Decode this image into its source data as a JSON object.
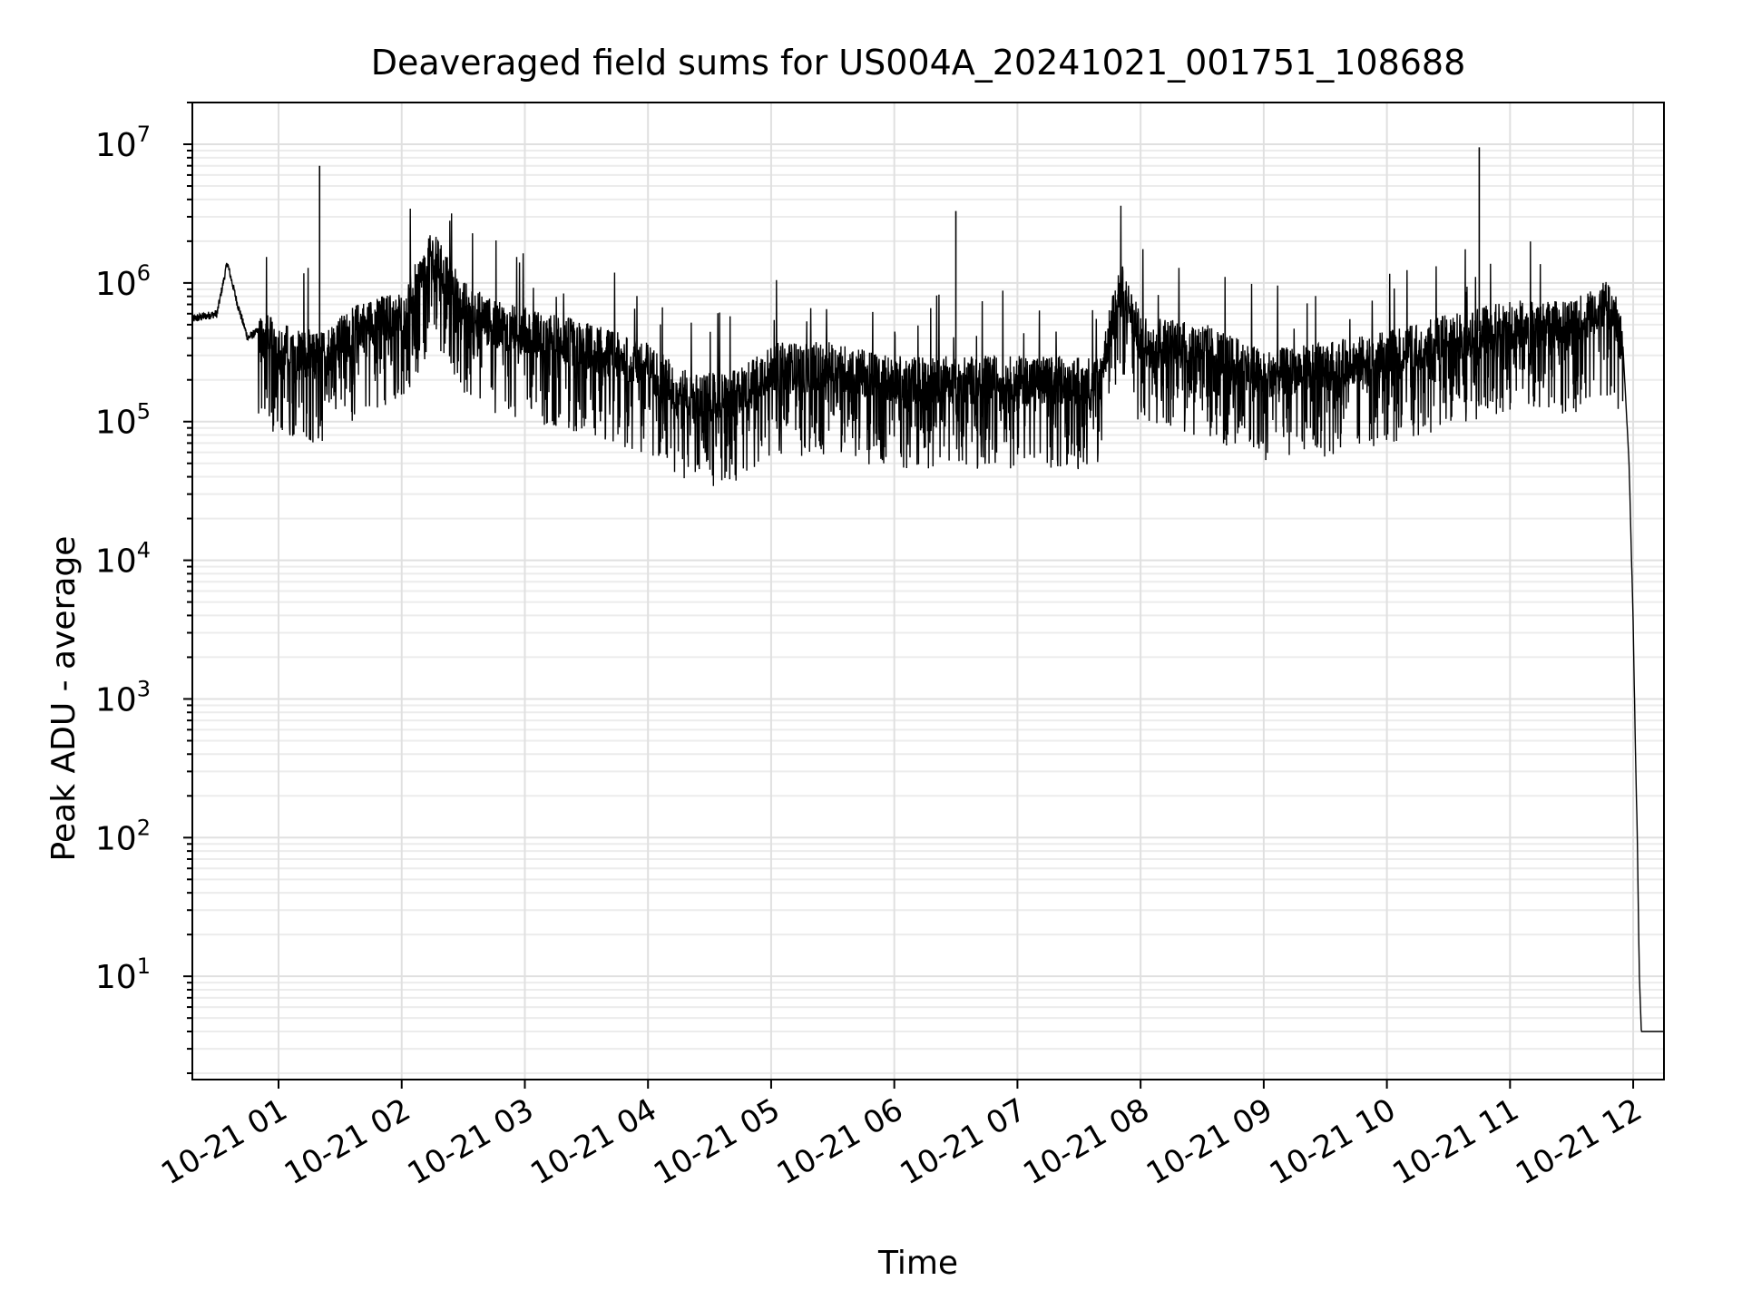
{
  "chart_data": {
    "type": "line",
    "title": "Deaveraged field sums for US004A_20241021_001751_108688",
    "xlabel": "Time",
    "ylabel": "Peak ADU - average",
    "yscale": "log",
    "ylim": [
      1.8,
      20000000
    ],
    "xlim": [
      "2024-10-21T00:18:00",
      "2024-10-21T12:15:00"
    ],
    "grid": true,
    "line_color": "#000000",
    "x_ticks": [
      "2024-10-21T01:00:00",
      "2024-10-21T02:00:00",
      "2024-10-21T03:00:00",
      "2024-10-21T04:00:00",
      "2024-10-21T05:00:00",
      "2024-10-21T06:00:00",
      "2024-10-21T07:00:00",
      "2024-10-21T08:00:00",
      "2024-10-21T09:00:00",
      "2024-10-21T10:00:00",
      "2024-10-21T11:00:00",
      "2024-10-21T12:00:00"
    ],
    "x_tick_labels": [
      "10-21 01",
      "10-21 02",
      "10-21 03",
      "10-21 04",
      "10-21 05",
      "10-21 06",
      "10-21 07",
      "10-21 08",
      "10-21 09",
      "10-21 10",
      "10-21 11",
      "10-21 12"
    ],
    "y_ticks": [
      10,
      100,
      1000,
      10000,
      100000,
      1000000,
      10000000
    ],
    "y_tick_base": "10",
    "y_tick_exponents": [
      "1",
      "2",
      "3",
      "4",
      "5",
      "6",
      "7"
    ],
    "series": [
      {
        "x": [
          "2024-10-21T00:18:00",
          "2024-10-21T00:30:00",
          "2024-10-21T00:35:00",
          "2024-10-21T00:40:00",
          "2024-10-21T00:45:00",
          "2024-10-21T00:50:00",
          "2024-10-21T01:00:00",
          "2024-10-21T01:20:00",
          "2024-10-21T01:40:00",
          "2024-10-21T02:00:00",
          "2024-10-21T02:15:00",
          "2024-10-21T02:30:00",
          "2024-10-21T02:45:00",
          "2024-10-21T03:00:00",
          "2024-10-21T03:30:00",
          "2024-10-21T04:00:00",
          "2024-10-21T04:20:00",
          "2024-10-21T04:40:00",
          "2024-10-21T05:00:00",
          "2024-10-21T05:30:00",
          "2024-10-21T06:00:00",
          "2024-10-21T06:30:00",
          "2024-10-21T07:00:00",
          "2024-10-21T07:40:00",
          "2024-10-21T07:50:00",
          "2024-10-21T08:00:00",
          "2024-10-21T08:30:00",
          "2024-10-21T09:00:00",
          "2024-10-21T09:30:00",
          "2024-10-21T10:00:00",
          "2024-10-21T10:30:00",
          "2024-10-21T11:00:00",
          "2024-10-21T11:30:00",
          "2024-10-21T11:45:00",
          "2024-10-21T11:50:00",
          "2024-10-21T11:55:00",
          "2024-10-21T11:58:00",
          "2024-10-21T12:00:00",
          "2024-10-21T12:01:00",
          "2024-10-21T12:02:00",
          "2024-10-21T12:03:00",
          "2024-10-21T12:04:00",
          "2024-10-21T12:15:00"
        ],
        "values": [
          550000,
          600000,
          1400000,
          700000,
          400000,
          450000,
          350000,
          300000,
          500000,
          600000,
          1600000,
          700000,
          500000,
          450000,
          350000,
          250000,
          150000,
          150000,
          250000,
          250000,
          200000,
          200000,
          200000,
          200000,
          1000000,
          400000,
          350000,
          220000,
          250000,
          300000,
          400000,
          500000,
          500000,
          700000,
          650000,
          350000,
          50000,
          3500,
          500,
          100,
          10,
          4,
          4
        ]
      }
    ],
    "annotations": [
      {
        "x": "2024-10-21T01:20:00",
        "y": 7000000
      },
      {
        "x": "2024-10-21T06:30:00",
        "y": 3300000
      },
      {
        "x": "2024-10-21T10:45:00",
        "y": 9500000
      }
    ]
  }
}
